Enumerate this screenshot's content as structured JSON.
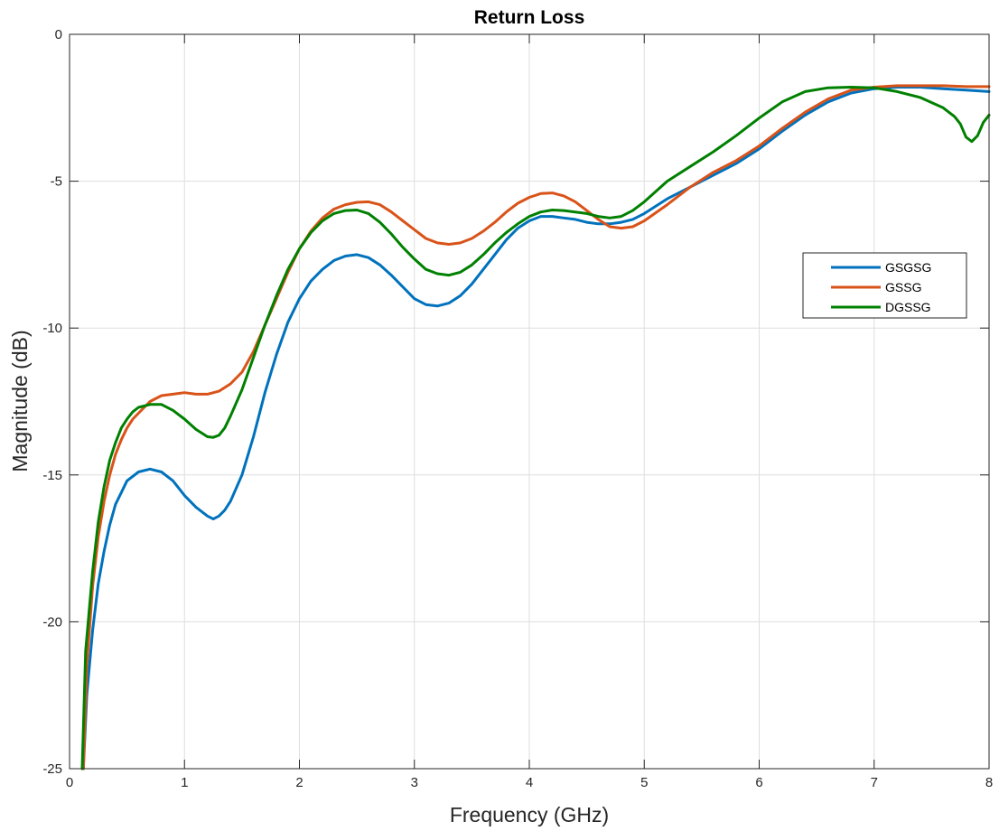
{
  "chart_data": {
    "type": "line",
    "title": "Return Loss",
    "xlabel": "Frequency (GHz)",
    "ylabel": "Magnitude (dB)",
    "xlim": [
      0,
      8
    ],
    "ylim": [
      -25,
      0
    ],
    "xticks": [
      0,
      1,
      2,
      3,
      4,
      5,
      6,
      7,
      8
    ],
    "yticks": [
      -25,
      -20,
      -15,
      -10,
      -5,
      0
    ],
    "grid": true,
    "legend_position": "right",
    "series": [
      {
        "name": "GSGSG",
        "color": "#0072BD",
        "x": [
          0.12,
          0.15,
          0.2,
          0.25,
          0.3,
          0.35,
          0.4,
          0.45,
          0.5,
          0.6,
          0.7,
          0.8,
          0.9,
          1.0,
          1.1,
          1.2,
          1.25,
          1.3,
          1.35,
          1.4,
          1.5,
          1.6,
          1.7,
          1.8,
          1.9,
          2.0,
          2.1,
          2.2,
          2.3,
          2.4,
          2.5,
          2.6,
          2.7,
          2.8,
          2.9,
          3.0,
          3.1,
          3.2,
          3.3,
          3.4,
          3.5,
          3.6,
          3.7,
          3.8,
          3.9,
          4.0,
          4.1,
          4.2,
          4.3,
          4.4,
          4.5,
          4.6,
          4.7,
          4.8,
          4.9,
          5.0,
          5.2,
          5.4,
          5.6,
          5.8,
          6.0,
          6.2,
          6.4,
          6.6,
          6.8,
          7.0,
          7.2,
          7.4,
          7.6,
          7.8,
          8.0
        ],
        "y": [
          -25.0,
          -22.5,
          -20.3,
          -18.7,
          -17.6,
          -16.7,
          -16.0,
          -15.6,
          -15.2,
          -14.9,
          -14.8,
          -14.9,
          -15.2,
          -15.7,
          -16.1,
          -16.4,
          -16.5,
          -16.4,
          -16.2,
          -15.9,
          -15.0,
          -13.7,
          -12.2,
          -10.9,
          -9.8,
          -9.0,
          -8.4,
          -8.0,
          -7.7,
          -7.55,
          -7.5,
          -7.6,
          -7.85,
          -8.2,
          -8.6,
          -9.0,
          -9.2,
          -9.25,
          -9.15,
          -8.9,
          -8.5,
          -8.0,
          -7.5,
          -7.0,
          -6.6,
          -6.35,
          -6.2,
          -6.2,
          -6.25,
          -6.3,
          -6.4,
          -6.45,
          -6.45,
          -6.4,
          -6.3,
          -6.1,
          -5.6,
          -5.2,
          -4.8,
          -4.4,
          -3.9,
          -3.3,
          -2.75,
          -2.3,
          -2.0,
          -1.85,
          -1.8,
          -1.8,
          -1.85,
          -1.9,
          -1.95
        ]
      },
      {
        "name": "GSSG",
        "color": "#D95319",
        "x": [
          0.12,
          0.15,
          0.2,
          0.25,
          0.3,
          0.35,
          0.4,
          0.45,
          0.5,
          0.55,
          0.6,
          0.7,
          0.8,
          0.9,
          1.0,
          1.1,
          1.2,
          1.3,
          1.4,
          1.5,
          1.6,
          1.7,
          1.8,
          1.9,
          2.0,
          2.1,
          2.2,
          2.3,
          2.4,
          2.5,
          2.6,
          2.7,
          2.8,
          2.9,
          3.0,
          3.1,
          3.2,
          3.3,
          3.4,
          3.5,
          3.6,
          3.7,
          3.8,
          3.9,
          4.0,
          4.1,
          4.2,
          4.3,
          4.4,
          4.5,
          4.6,
          4.7,
          4.8,
          4.9,
          5.0,
          5.2,
          5.4,
          5.6,
          5.8,
          6.0,
          6.2,
          6.4,
          6.6,
          6.8,
          7.0,
          7.2,
          7.4,
          7.6,
          7.8,
          8.0
        ],
        "y": [
          -25.0,
          -21.5,
          -18.8,
          -17.1,
          -15.9,
          -15.0,
          -14.3,
          -13.8,
          -13.4,
          -13.1,
          -12.9,
          -12.5,
          -12.3,
          -12.25,
          -12.2,
          -12.25,
          -12.25,
          -12.15,
          -11.9,
          -11.5,
          -10.8,
          -9.9,
          -9.0,
          -8.1,
          -7.3,
          -6.7,
          -6.25,
          -5.95,
          -5.8,
          -5.72,
          -5.7,
          -5.8,
          -6.05,
          -6.35,
          -6.65,
          -6.95,
          -7.1,
          -7.15,
          -7.1,
          -6.95,
          -6.7,
          -6.4,
          -6.05,
          -5.75,
          -5.55,
          -5.42,
          -5.4,
          -5.5,
          -5.7,
          -6.0,
          -6.3,
          -6.55,
          -6.6,
          -6.55,
          -6.35,
          -5.8,
          -5.2,
          -4.7,
          -4.3,
          -3.8,
          -3.2,
          -2.65,
          -2.2,
          -1.9,
          -1.8,
          -1.75,
          -1.75,
          -1.75,
          -1.78,
          -1.78
        ]
      },
      {
        "name": "DGSSG",
        "color": "#008000",
        "x": [
          0.11,
          0.14,
          0.2,
          0.25,
          0.3,
          0.35,
          0.4,
          0.45,
          0.5,
          0.55,
          0.6,
          0.7,
          0.8,
          0.9,
          1.0,
          1.1,
          1.2,
          1.25,
          1.3,
          1.35,
          1.4,
          1.5,
          1.6,
          1.7,
          1.8,
          1.9,
          2.0,
          2.1,
          2.2,
          2.3,
          2.4,
          2.5,
          2.6,
          2.7,
          2.8,
          2.9,
          3.0,
          3.1,
          3.2,
          3.3,
          3.4,
          3.5,
          3.6,
          3.7,
          3.8,
          3.9,
          4.0,
          4.1,
          4.2,
          4.3,
          4.4,
          4.5,
          4.6,
          4.7,
          4.8,
          4.9,
          5.0,
          5.2,
          5.4,
          5.6,
          5.8,
          6.0,
          6.2,
          6.4,
          6.6,
          6.8,
          7.0,
          7.2,
          7.4,
          7.6,
          7.7,
          7.75,
          7.8,
          7.85,
          7.9,
          7.95,
          8.0
        ],
        "y": [
          -25.0,
          -21.0,
          -18.3,
          -16.6,
          -15.4,
          -14.5,
          -13.9,
          -13.4,
          -13.1,
          -12.85,
          -12.7,
          -12.6,
          -12.6,
          -12.8,
          -13.1,
          -13.45,
          -13.7,
          -13.72,
          -13.65,
          -13.4,
          -13.0,
          -12.1,
          -11.0,
          -9.9,
          -8.9,
          -8.0,
          -7.3,
          -6.75,
          -6.35,
          -6.1,
          -6.0,
          -5.98,
          -6.1,
          -6.4,
          -6.8,
          -7.25,
          -7.65,
          -8.0,
          -8.15,
          -8.2,
          -8.1,
          -7.85,
          -7.5,
          -7.1,
          -6.75,
          -6.45,
          -6.2,
          -6.05,
          -5.98,
          -6.0,
          -6.05,
          -6.1,
          -6.2,
          -6.25,
          -6.2,
          -6.0,
          -5.7,
          -5.0,
          -4.5,
          -4.0,
          -3.45,
          -2.85,
          -2.3,
          -1.95,
          -1.82,
          -1.8,
          -1.82,
          -1.95,
          -2.15,
          -2.5,
          -2.8,
          -3.05,
          -3.5,
          -3.65,
          -3.45,
          -3.0,
          -2.75
        ]
      }
    ]
  }
}
